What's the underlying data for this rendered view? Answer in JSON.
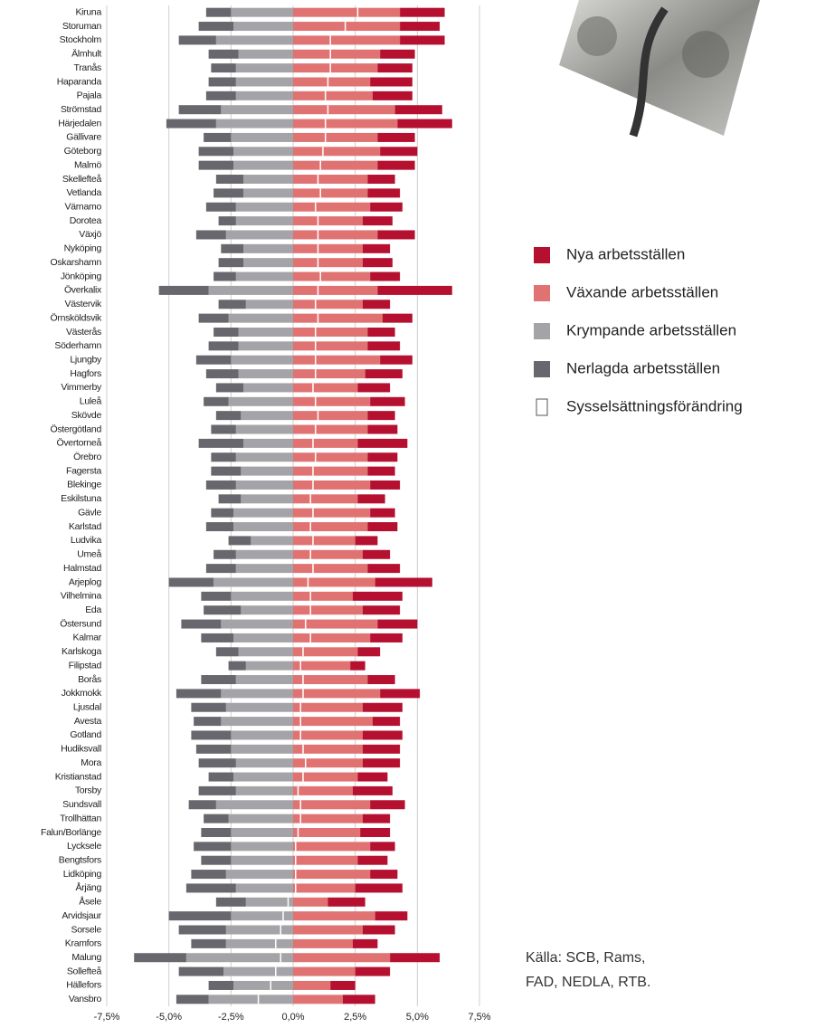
{
  "chart_data": {
    "type": "diverging-stacked-bar",
    "categories": [
      "Kiruna",
      "Storuman",
      "Stockholm",
      "Älmhult",
      "Tranås",
      "Haparanda",
      "Pajala",
      "Strömstad",
      "Härjedalen",
      "Gällivare",
      "Göteborg",
      "Malmö",
      "Skellefteå",
      "Vetlanda",
      "Värnamo",
      "Dorotea",
      "Växjö",
      "Nyköping",
      "Oskarshamn",
      "Jönköping",
      "Överkalix",
      "Västervik",
      "Örnsköldsvik",
      "Västerås",
      "Söderhamn",
      "Ljungby",
      "Hagfors",
      "Vimmerby",
      "Luleå",
      "Skövde",
      "Östergötland",
      "Övertorneå",
      "Örebro",
      "Fagersta",
      "Blekinge",
      "Eskilstuna",
      "Gävle",
      "Karlstad",
      "Ludvika",
      "Umeå",
      "Halmstad",
      "Arjeplog",
      "Vilhelmina",
      "Eda",
      "Östersund",
      "Kalmar",
      "Karlskoga",
      "Filipstad",
      "Borås",
      "Jokkmokk",
      "Ljusdal",
      "Avesta",
      "Gotland",
      "Hudiksvall",
      "Mora",
      "Kristianstad",
      "Torsby",
      "Sundsvall",
      "Trollhättan",
      "Falun/Borlänge",
      "Lycksele",
      "Bengtsfors",
      "Lidköping",
      "Årjäng",
      "Åsele",
      "Arvidsjaur",
      "Sorsele",
      "Kramfors",
      "Malung",
      "Sollefteå",
      "Hällefors",
      "Vansbro"
    ],
    "series": [
      {
        "name": "Nya arbetsställen",
        "color": "#b5102f",
        "values": [
          1.8,
          1.6,
          1.8,
          1.4,
          1.4,
          1.7,
          1.6,
          1.9,
          2.2,
          1.5,
          1.5,
          1.5,
          1.1,
          1.3,
          1.3,
          1.2,
          1.5,
          1.1,
          1.2,
          1.2,
          3.0,
          1.1,
          1.2,
          1.1,
          1.3,
          1.3,
          1.5,
          1.3,
          1.4,
          1.1,
          1.2,
          2.0,
          1.2,
          1.1,
          1.2,
          1.1,
          1.0,
          1.2,
          0.9,
          1.1,
          1.3,
          2.3,
          2.0,
          1.5,
          1.6,
          1.3,
          0.9,
          0.6,
          1.1,
          1.6,
          1.6,
          1.1,
          1.6,
          1.5,
          1.5,
          1.2,
          1.6,
          1.4,
          1.1,
          1.2,
          1.0,
          1.2,
          1.1,
          1.9,
          1.5,
          1.3,
          1.3,
          1.0,
          2.0,
          1.4,
          1.0,
          1.3
        ]
      },
      {
        "name": "Växande arbetsställen",
        "color": "#e07272",
        "values": [
          4.3,
          4.3,
          4.3,
          3.5,
          3.4,
          3.1,
          3.2,
          4.1,
          4.2,
          3.4,
          3.5,
          3.4,
          3.0,
          3.0,
          3.1,
          2.8,
          3.4,
          2.8,
          2.8,
          3.1,
          3.4,
          2.8,
          3.6,
          3.0,
          3.0,
          3.5,
          2.9,
          2.6,
          3.1,
          3.0,
          3.0,
          2.6,
          3.0,
          3.0,
          3.1,
          2.6,
          3.1,
          3.0,
          2.5,
          2.8,
          3.0,
          3.3,
          2.4,
          2.8,
          3.4,
          3.1,
          2.6,
          2.3,
          3.0,
          3.5,
          2.8,
          3.2,
          2.8,
          2.8,
          2.8,
          2.6,
          2.4,
          3.1,
          2.8,
          2.7,
          3.1,
          2.6,
          3.1,
          2.5,
          1.4,
          3.3,
          2.8,
          2.4,
          3.9,
          2.5,
          1.5,
          2.0
        ]
      },
      {
        "name": "Krympande arbetsställen",
        "color": "#a4a4a8",
        "values": [
          -2.5,
          -2.4,
          -3.1,
          -2.2,
          -2.3,
          -2.3,
          -2.3,
          -2.9,
          -3.1,
          -2.5,
          -2.4,
          -2.4,
          -2.0,
          -2.0,
          -2.3,
          -2.3,
          -2.7,
          -2.0,
          -2.0,
          -2.3,
          -3.4,
          -1.9,
          -2.6,
          -2.2,
          -2.2,
          -2.5,
          -2.2,
          -2.0,
          -2.6,
          -2.1,
          -2.3,
          -2.0,
          -2.3,
          -2.1,
          -2.3,
          -2.1,
          -2.4,
          -2.4,
          -1.7,
          -2.3,
          -2.3,
          -3.2,
          -2.5,
          -2.1,
          -2.9,
          -2.4,
          -2.2,
          -1.9,
          -2.3,
          -2.9,
          -2.7,
          -2.9,
          -2.5,
          -2.5,
          -2.3,
          -2.4,
          -2.3,
          -3.1,
          -2.6,
          -2.5,
          -2.5,
          -2.5,
          -2.7,
          -2.3,
          -1.9,
          -2.5,
          -2.7,
          -2.7,
          -4.3,
          -2.8,
          -2.4,
          -3.4
        ]
      },
      {
        "name": "Nerlagda arbetsställen",
        "color": "#67676d",
        "values": [
          -1.0,
          -1.4,
          -1.5,
          -1.2,
          -1.0,
          -1.1,
          -1.2,
          -1.7,
          -2.0,
          -1.1,
          -1.4,
          -1.4,
          -1.1,
          -1.2,
          -1.2,
          -0.7,
          -1.2,
          -0.9,
          -1.0,
          -0.9,
          -2.0,
          -1.1,
          -1.2,
          -1.0,
          -1.2,
          -1.4,
          -1.3,
          -1.1,
          -1.0,
          -1.0,
          -1.0,
          -1.8,
          -1.0,
          -1.2,
          -1.2,
          -0.9,
          -0.9,
          -1.1,
          -0.9,
          -0.9,
          -1.2,
          -1.8,
          -1.2,
          -1.5,
          -1.6,
          -1.3,
          -0.9,
          -0.7,
          -1.4,
          -1.8,
          -1.4,
          -1.1,
          -1.6,
          -1.4,
          -1.5,
          -1.0,
          -1.5,
          -1.1,
          -1.0,
          -1.2,
          -1.5,
          -1.2,
          -1.4,
          -2.0,
          -1.2,
          -2.5,
          -1.9,
          -1.4,
          -2.1,
          -1.8,
          -1.0,
          -1.3
        ]
      },
      {
        "name": "Sysselsättningsförändring",
        "color": "#ffffff",
        "style": "marker",
        "values": [
          2.6,
          2.1,
          1.5,
          1.5,
          1.5,
          1.4,
          1.3,
          1.4,
          1.3,
          1.3,
          1.2,
          1.1,
          1.0,
          1.1,
          0.9,
          1.0,
          1.0,
          1.0,
          1.0,
          1.1,
          1.0,
          0.9,
          1.0,
          0.9,
          0.9,
          0.9,
          0.9,
          0.8,
          0.9,
          1.0,
          0.9,
          0.8,
          0.9,
          0.8,
          0.8,
          0.7,
          0.8,
          0.7,
          0.8,
          0.7,
          0.8,
          0.6,
          0.7,
          0.7,
          0.5,
          0.7,
          0.4,
          0.3,
          0.4,
          0.4,
          0.3,
          0.3,
          0.3,
          0.4,
          0.5,
          0.4,
          0.2,
          0.3,
          0.3,
          0.2,
          0.1,
          0.1,
          0.1,
          0.1,
          -0.2,
          -0.4,
          -0.5,
          -0.7,
          -0.5,
          -0.7,
          -0.9,
          -1.4
        ]
      }
    ],
    "xlim": [
      -7.5,
      7.5
    ],
    "xticks": [
      {
        "value": -7.5,
        "label": "-7,5%"
      },
      {
        "value": -5,
        "label": "-5,0%"
      },
      {
        "value": -2.5,
        "label": "-2,5%"
      },
      {
        "value": 0,
        "label": "0,0%"
      },
      {
        "value": 2.5,
        "label": "2,5%"
      },
      {
        "value": 5,
        "label": "5,0%"
      },
      {
        "value": 7.5,
        "label": "7,5%"
      }
    ],
    "grid": true,
    "legend": "right",
    "source": [
      "Källa: SCB, Rams,",
      "FAD, NEDLA, RTB."
    ]
  }
}
